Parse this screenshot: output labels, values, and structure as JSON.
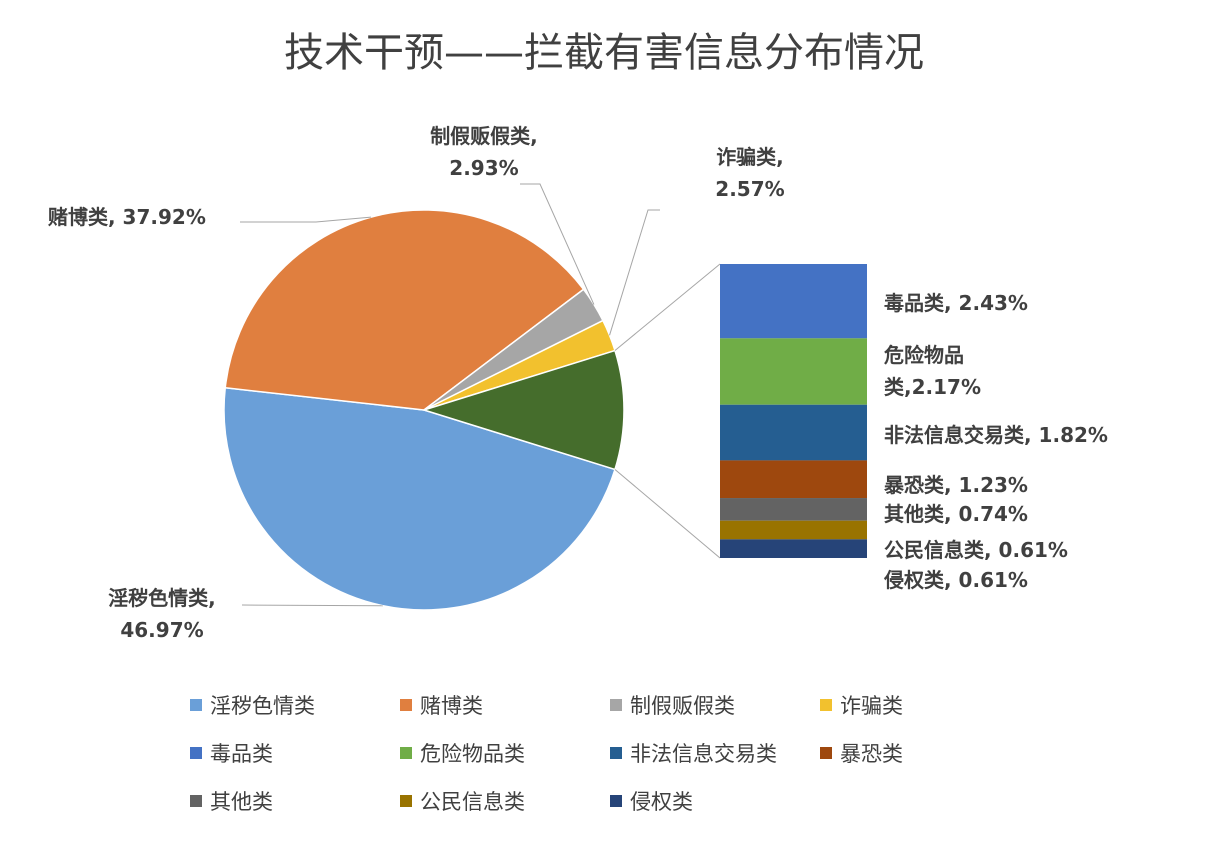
{
  "chart_data": {
    "type": "bar-of-pie",
    "title": "技术干预——拦截有害信息分布情况",
    "pie": [
      {
        "name": "淫秽色情类",
        "value": 46.97,
        "label_lines": [
          "淫秽色情类,",
          "46.97%"
        ],
        "color": "#6a9fd8"
      },
      {
        "name": "赌博类",
        "value": 37.92,
        "label_lines": [
          "赌博类, 37.92%"
        ],
        "color": "#e07f3f"
      },
      {
        "name": "制假贩假类",
        "value": 2.93,
        "label_lines": [
          "制假贩假类,",
          "2.93%"
        ],
        "color": "#a6a6a6"
      },
      {
        "name": "诈骗类",
        "value": 2.57,
        "label_lines": [
          "诈骗类,",
          "2.57%"
        ],
        "color": "#f2c12e"
      },
      {
        "name": "其他",
        "value": 9.61,
        "label_lines": [],
        "color": "#456d2c"
      }
    ],
    "bar": [
      {
        "name": "毒品类",
        "value": 2.43,
        "label_lines": [
          "毒品类, 2.43%"
        ],
        "color": "#4472c4"
      },
      {
        "name": "危险物品类",
        "value": 2.17,
        "label_lines": [
          "危险物品",
          "类,2.17%"
        ],
        "color": "#70ad47"
      },
      {
        "name": "非法信息交易类",
        "value": 1.82,
        "label_lines": [
          "非法信息交易类, 1.82%"
        ],
        "color": "#255e91"
      },
      {
        "name": "暴恐类",
        "value": 1.23,
        "label_lines": [
          "暴恐类, 1.23%"
        ],
        "color": "#9e480e"
      },
      {
        "name": "其他类",
        "value": 0.74,
        "label_lines": [
          "其他类, 0.74%"
        ],
        "color": "#636363"
      },
      {
        "name": "公民信息类",
        "value": 0.61,
        "label_lines": [
          "公民信息类, 0.61%"
        ],
        "color": "#997300"
      },
      {
        "name": "侵权类",
        "value": 0.61,
        "label_lines": [
          "侵权类, 0.61%"
        ],
        "color": "#264478"
      }
    ],
    "legend": [
      {
        "label": "淫秽色情类",
        "color": "#6a9fd8"
      },
      {
        "label": "赌博类",
        "color": "#e07f3f"
      },
      {
        "label": "制假贩假类",
        "color": "#a6a6a6"
      },
      {
        "label": "诈骗类",
        "color": "#f2c12e"
      },
      {
        "label": "毒品类",
        "color": "#4472c4"
      },
      {
        "label": "危险物品类",
        "color": "#70ad47"
      },
      {
        "label": "非法信息交易类",
        "color": "#255e91"
      },
      {
        "label": "暴恐类",
        "color": "#9e480e"
      },
      {
        "label": "其他类",
        "color": "#636363"
      },
      {
        "label": "公民信息类",
        "color": "#997300"
      },
      {
        "label": "侵权类",
        "color": "#264478"
      }
    ],
    "legend_position": "bottom"
  }
}
